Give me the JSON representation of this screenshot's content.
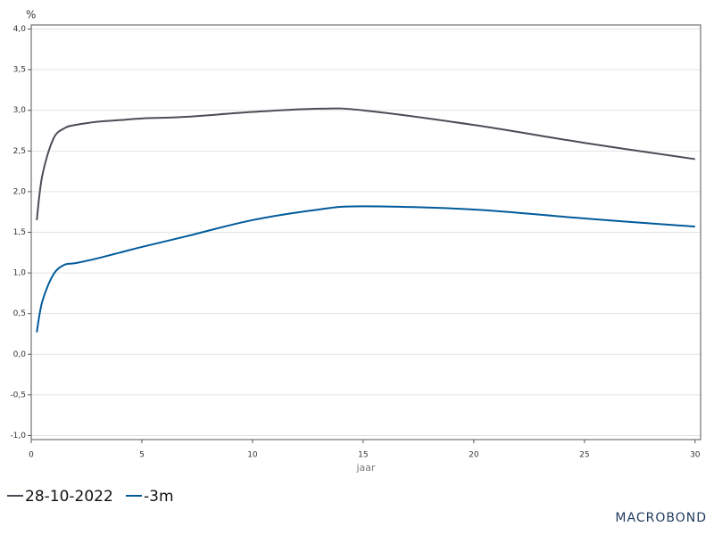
{
  "chart_data": {
    "type": "line",
    "y_unit": "%",
    "x_label": "jaar",
    "logo": "MACROBOND",
    "x": [
      0.25,
      0.5,
      1,
      1.5,
      2,
      3,
      4,
      5,
      7,
      10,
      13,
      15,
      20,
      25,
      30
    ],
    "series": [
      {
        "name": "28-10-2022",
        "color": "#4a4d55",
        "values": [
          1.65,
          2.2,
          2.65,
          2.78,
          2.82,
          2.86,
          2.88,
          2.9,
          2.92,
          2.98,
          3.02,
          3.0,
          2.82,
          2.6,
          2.4
        ]
      },
      {
        "name": "-3m",
        "color": "#005a9c",
        "values": [
          0.27,
          0.65,
          0.98,
          1.1,
          1.12,
          1.18,
          1.25,
          1.32,
          1.45,
          1.65,
          1.78,
          1.82,
          1.78,
          1.67,
          1.57
        ]
      }
    ],
    "xlim": [
      0,
      30.25
    ],
    "ylim": [
      -1.05,
      4.05
    ],
    "xticks": [
      0,
      5,
      10,
      15,
      20,
      25,
      30
    ],
    "yticks": [
      {
        "value": -1,
        "label": "-1,0"
      },
      {
        "value": -0.5,
        "label": "-0,5"
      },
      {
        "value": 0,
        "label": "0,0"
      },
      {
        "value": 0.5,
        "label": "0,5"
      },
      {
        "value": 1,
        "label": "1,0"
      },
      {
        "value": 1.5,
        "label": "1,5"
      },
      {
        "value": 2,
        "label": "2,0"
      },
      {
        "value": 2.5,
        "label": "2,5"
      },
      {
        "value": 3,
        "label": "3,0"
      },
      {
        "value": 3.5,
        "label": "3,5"
      },
      {
        "value": 4,
        "label": "4,0"
      }
    ],
    "grid": true
  }
}
